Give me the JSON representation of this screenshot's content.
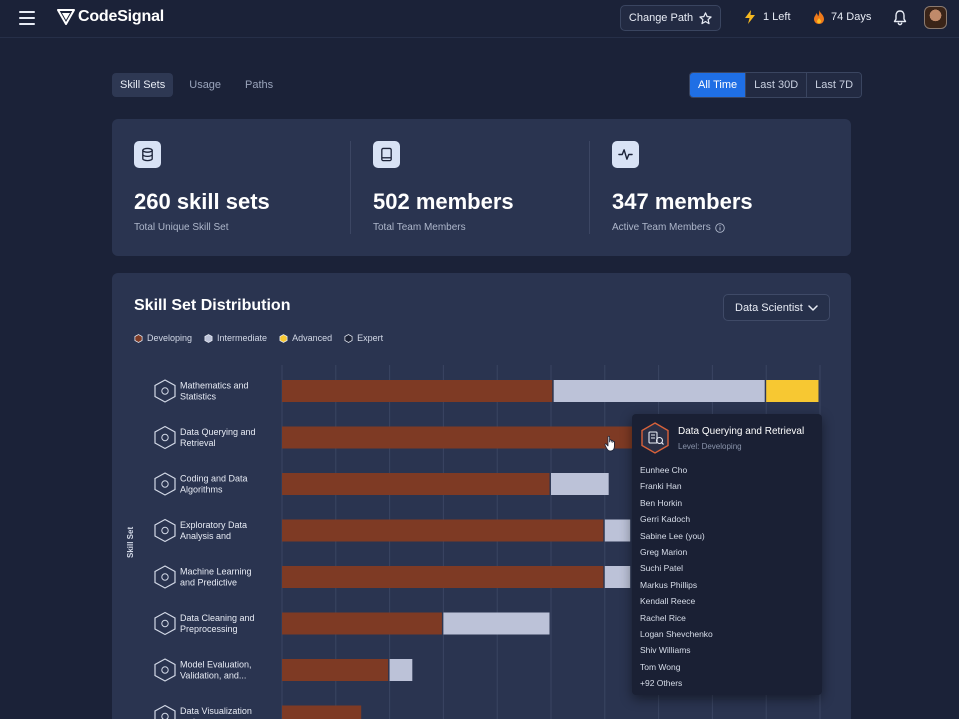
{
  "header": {
    "logo_text": "CodeSignal",
    "change_path_label": "Change Path",
    "boosts": "1 Left",
    "streak": "74 Days",
    "colors": {
      "boost": "#f5b820",
      "streak": "#f07a1a"
    }
  },
  "tabs": [
    {
      "label": "Skill Sets",
      "active": true
    },
    {
      "label": "Usage",
      "active": false
    },
    {
      "label": "Paths",
      "active": false
    }
  ],
  "time_range": [
    {
      "label": "All Time",
      "active": true
    },
    {
      "label": "Last 30D",
      "active": false
    },
    {
      "label": "Last 7D",
      "active": false
    }
  ],
  "stats": [
    {
      "icon": "database-icon",
      "value": "260 skill sets",
      "label": "Total Unique Skill Set"
    },
    {
      "icon": "book-icon",
      "value": "502 members",
      "label": "Total Team Members"
    },
    {
      "icon": "activity-icon",
      "value": "347 members",
      "label": "Active Team Members"
    }
  ],
  "distribution": {
    "title": "Skill Set Distribution",
    "role_select": "Data Scientist",
    "legend": [
      {
        "label": "Developing",
        "color": "#7e3a24"
      },
      {
        "label": "Intermediate",
        "color": "#bcc2d8"
      },
      {
        "label": "Advanced",
        "color": "#f7c832"
      },
      {
        "label": "Expert",
        "color": "#1a2034"
      }
    ],
    "y_axis_label": "Skill Set"
  },
  "chart_data": {
    "type": "bar",
    "orientation": "horizontal",
    "stacked": true,
    "ylabel": "Skill Set",
    "categories": [
      "Mathematics and Statistics",
      "Data Querying and Retrieval",
      "Coding and Data Algorithms",
      "Exploratory Data Analysis and Visualiza...",
      "Machine Learning and Predictive Modeling",
      "Data Cleaning and Preprocessing",
      "Model Evaluation, Validation, and...",
      "Data Visualization and"
    ],
    "series": [
      {
        "name": "Developing",
        "values": [
          50.5,
          66.5,
          50.0,
          60.0,
          60.0,
          30.0,
          20.0,
          15.0
        ]
      },
      {
        "name": "Intermediate",
        "values": [
          39.5,
          0,
          11.0,
          5.0,
          5.0,
          20.0,
          4.5,
          0
        ]
      },
      {
        "name": "Advanced",
        "values": [
          10.0,
          0,
          0,
          0,
          0,
          0,
          0,
          0
        ]
      },
      {
        "name": "Expert",
        "values": [
          0,
          0,
          0,
          0,
          0,
          0,
          0,
          0
        ]
      }
    ],
    "xlim": [
      0,
      100
    ],
    "grid": true,
    "legend_position": "top-left"
  },
  "tooltip": {
    "title": "Data Querying and Retrieval",
    "level": "Level: Developing",
    "members": [
      "Eunhee Cho",
      "Franki Han",
      "Ben Horkin",
      "Gerri Kadoch",
      "Sabine Lee (you)",
      "Greg Marion",
      "Suchi Patel",
      "Markus Phillips",
      "Kendall Reece",
      "Rachel Rice",
      "Logan Shevchenko",
      "Shiv Williams",
      "Tom Wong",
      "+92 Others"
    ]
  }
}
